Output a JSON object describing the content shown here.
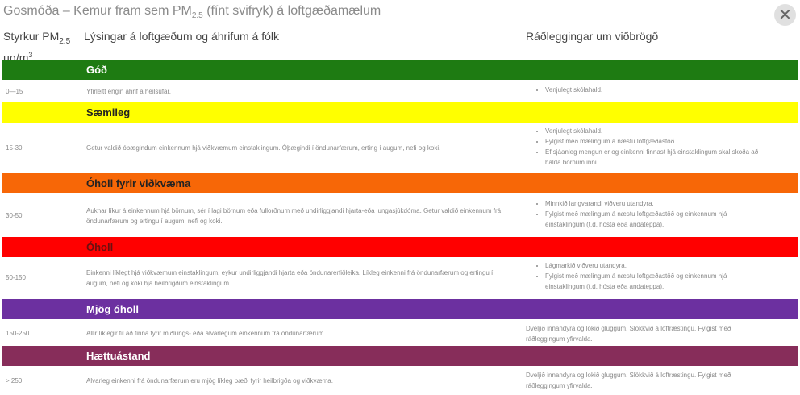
{
  "title": {
    "pre": "Gosmóða – Kemur fram sem PM",
    "sub": "2.5",
    "post": " (fínt svifryk) á loftgæðamælum"
  },
  "close_icon": "close-x-icon",
  "headers": {
    "col1_pre": "Styrkur PM",
    "col1_sub": "2.5",
    "col1_unit": "µg/m",
    "col1_sup": "3",
    "col2": "Lýsingar á loftgæðum og áhrifum á fólk",
    "col3": "Ráðleggingar um viðbrögð"
  },
  "levels": [
    {
      "name": "Góð",
      "color": "#1e7b12",
      "text_color": "#ffffff",
      "range": "0—15",
      "description": "Yfirleitt engin áhrif á heilsufar.",
      "advice": [
        "Venjulegt skólahald."
      ]
    },
    {
      "name": "Sæmileg",
      "color": "#ffff00",
      "text_color": "#222222",
      "range": "15-30",
      "description": "Getur valdið óþægindum einkennum hjá viðkvæmum einstaklingum. Óþægindi í öndunarfærum, erting í augum, nefi og koki.",
      "advice": [
        "Venjulegt skólahald.",
        "Fylgist með mælingum á næstu loftgæðastöð.",
        "Ef sjáanleg mengun er og einkenni finnast hjá einstaklingum skal skoða að halda börnum inni."
      ]
    },
    {
      "name": "Óholl fyrir viðkvæma",
      "color": "#f76707",
      "text_color": "#222222",
      "range": "30-50",
      "description": "Auknar líkur á einkennum hjá börnum, sér í lagi börnum eða fullorðnum með undirliggjandi hjarta-eða lungasjúkdóma. Getur valdið einkennum frá öndunarfærum og ertingu í augum, nefi og koki.",
      "advice": [
        "Minnkið langvarandi viðveru utandyra.",
        "Fylgist með mælingum á næstu loftgæðastöð og einkennum hjá einstaklingum (t.d. hósta eða andateppa)."
      ]
    },
    {
      "name": "Óholl",
      "color": "#ff0000",
      "text_color": "#6a1010",
      "range": "50-150",
      "description": "Einkenni líklegt hjá viðkvæmum einstaklingum, eykur undirliggjandi hjarta eða öndunarerfiðleika. Líkleg einkenni frá öndunarfærum og ertingu í augum, nefi og koki hjá heilbrigðum einstaklingum.",
      "advice": [
        "Lágmarkið viðveru utandyra.",
        "Fylgist með mælingum á næstu loftgæðastöð og einkennum hjá einstaklingum (t.d. hósta eða andateppa)."
      ]
    },
    {
      "name": "Mjög óholl",
      "color": "#6c30a0",
      "text_color": "#ffffff",
      "range": "150-250",
      "description": "Allir líklegir til að finna fyrir miðlungs- eða alvarlegum einkennum frá öndunarfærum.",
      "advice_text": "Dveljið innandyra og lokið gluggum. Slökkvið á loftræstingu. Fylgist með ráðleggingum yfirvalda."
    },
    {
      "name": "Hættuástand",
      "color": "#872d5a",
      "text_color": "#ffffff",
      "range": "> 250",
      "description": "Alvarleg einkenni frá öndunarfærum eru mjög líkleg bæði fyrir heilbrigða og viðkvæma.",
      "advice_text": "Dveljið innandyra og lokið gluggum. Slökkvið á loftræstingu. Fylgist með ráðleggingum yfirvalda."
    }
  ]
}
